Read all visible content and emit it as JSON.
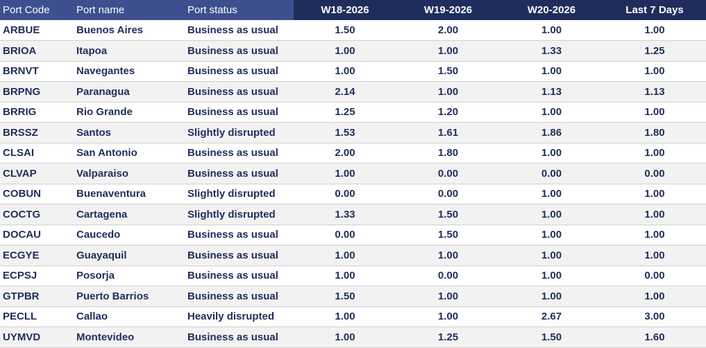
{
  "table": {
    "headers": {
      "port_code": "Port Code",
      "port_name": "Port name",
      "port_status": "Port status",
      "w18": "W18-2026",
      "w19": "W19-2026",
      "w20": "W20-2026",
      "last7": "Last 7 Days"
    },
    "rows": [
      {
        "code": "ARBUE",
        "name": "Buenos Aires",
        "status": "Business as usual",
        "w18": "1.50",
        "w19": "2.00",
        "w20": "1.00",
        "last7": "1.00"
      },
      {
        "code": "BRIOA",
        "name": "Itapoa",
        "status": "Business as usual",
        "w18": "1.00",
        "w19": "1.00",
        "w20": "1.33",
        "last7": "1.25"
      },
      {
        "code": "BRNVT",
        "name": "Navegantes",
        "status": "Business as usual",
        "w18": "1.00",
        "w19": "1.50",
        "w20": "1.00",
        "last7": "1.00"
      },
      {
        "code": "BRPNG",
        "name": "Paranagua",
        "status": "Business as usual",
        "w18": "2.14",
        "w19": "1.00",
        "w20": "1.13",
        "last7": "1.13"
      },
      {
        "code": "BRRIG",
        "name": "Rio Grande",
        "status": "Business as usual",
        "w18": "1.25",
        "w19": "1.20",
        "w20": "1.00",
        "last7": "1.00"
      },
      {
        "code": "BRSSZ",
        "name": "Santos",
        "status": "Slightly disrupted",
        "w18": "1.53",
        "w19": "1.61",
        "w20": "1.86",
        "last7": "1.80"
      },
      {
        "code": "CLSAI",
        "name": "San Antonio",
        "status": "Business as usual",
        "w18": "2.00",
        "w19": "1.80",
        "w20": "1.00",
        "last7": "1.00"
      },
      {
        "code": "CLVAP",
        "name": "Valparaiso",
        "status": "Business as usual",
        "w18": "1.00",
        "w19": "0.00",
        "w20": "0.00",
        "last7": "0.00"
      },
      {
        "code": "COBUN",
        "name": "Buenaventura",
        "status": "Slightly disrupted",
        "w18": "0.00",
        "w19": "0.00",
        "w20": "1.00",
        "last7": "1.00"
      },
      {
        "code": "COCTG",
        "name": "Cartagena",
        "status": "Slightly disrupted",
        "w18": "1.33",
        "w19": "1.50",
        "w20": "1.00",
        "last7": "1.00"
      },
      {
        "code": "DOCAU",
        "name": "Caucedo",
        "status": "Business as usual",
        "w18": "0.00",
        "w19": "1.50",
        "w20": "1.00",
        "last7": "1.00"
      },
      {
        "code": "ECGYE",
        "name": "Guayaquil",
        "status": "Business as usual",
        "w18": "1.00",
        "w19": "1.00",
        "w20": "1.00",
        "last7": "1.00"
      },
      {
        "code": "ECPSJ",
        "name": "Posorja",
        "status": "Business as usual",
        "w18": "1.00",
        "w19": "0.00",
        "w20": "1.00",
        "last7": "0.00"
      },
      {
        "code": "GTPBR",
        "name": "Puerto Barrios",
        "status": "Business as usual",
        "w18": "1.50",
        "w19": "1.00",
        "w20": "1.00",
        "last7": "1.00"
      },
      {
        "code": "PECLL",
        "name": "Callao",
        "status": "Heavily disrupted",
        "w18": "1.00",
        "w19": "1.00",
        "w20": "2.67",
        "last7": "3.00"
      },
      {
        "code": "UYMVD",
        "name": "Montevideo",
        "status": "Business as usual",
        "w18": "1.00",
        "w19": "1.25",
        "w20": "1.50",
        "last7": "1.60"
      }
    ]
  }
}
